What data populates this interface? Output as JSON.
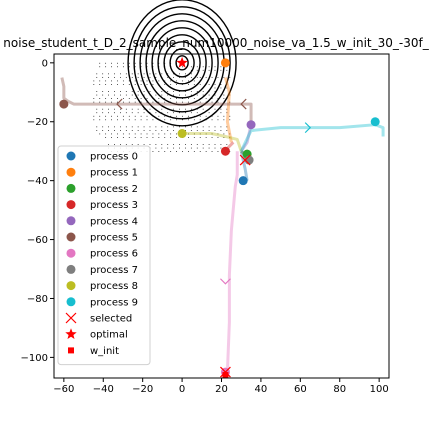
{
  "chart_data": {
    "type": "scatter",
    "title": "noise_student_t_D_2_sample_num10000_noise_va_1.5_w_init_30_-30f_",
    "xlabel": "",
    "ylabel": "",
    "xlim": [
      -65,
      105
    ],
    "ylim": [
      -107,
      3
    ],
    "x_ticks": [
      -60,
      -40,
      -20,
      0,
      20,
      40,
      60,
      80,
      100
    ],
    "y_ticks": [
      0,
      -20,
      -40,
      -60,
      -80,
      -100
    ],
    "grid": false,
    "legend_placement": "lower-left",
    "optimal": {
      "x": 0,
      "y": 0
    },
    "w_init": {
      "x": 22,
      "y": -106
    },
    "contour_center": {
      "x": 0,
      "y": 0
    },
    "series": [
      {
        "name": "process 0",
        "color": "#1f77b4",
        "path": [
          [
            30,
            -30
          ],
          [
            31,
            -33
          ],
          [
            32,
            -36
          ],
          [
            33,
            -40
          ]
        ],
        "end": [
          31,
          -40
        ]
      },
      {
        "name": "process 1",
        "color": "#ff7f0e",
        "path": [
          [
            22,
            -5
          ],
          [
            24,
            -10
          ],
          [
            23,
            -20
          ],
          [
            25,
            -27
          ]
        ],
        "end": [
          22,
          0
        ]
      },
      {
        "name": "process 2",
        "color": "#2ca02c",
        "path": [
          [
            30,
            -30
          ],
          [
            32,
            -31
          ],
          [
            33,
            -30
          ],
          [
            32,
            -33
          ]
        ],
        "end": [
          33,
          -31
        ]
      },
      {
        "name": "process 3",
        "color": "#d62728",
        "path": [
          [
            26,
            -27
          ],
          [
            23,
            -29
          ],
          [
            22,
            -30
          ]
        ],
        "end": [
          22,
          -30
        ]
      },
      {
        "name": "process 4",
        "color": "#9467bd",
        "path": [
          [
            30,
            -30
          ],
          [
            33,
            -27
          ],
          [
            34,
            -24
          ],
          [
            35,
            -21
          ]
        ],
        "end": [
          35,
          -21
        ]
      },
      {
        "name": "process 5",
        "color": "#8c564b",
        "path": [
          [
            35,
            -20
          ],
          [
            35,
            -14
          ],
          [
            0,
            -14
          ],
          [
            -55,
            -14
          ],
          [
            -58,
            -13
          ],
          [
            -60,
            -12
          ],
          [
            -60,
            -8
          ],
          [
            -61,
            -5
          ]
        ],
        "end": [
          -60,
          -14
        ]
      },
      {
        "name": "process 6",
        "color": "#e377c2",
        "path": [
          [
            28,
            -30
          ],
          [
            28,
            -38
          ],
          [
            27,
            -42
          ],
          [
            25,
            -57
          ],
          [
            24,
            -72
          ],
          [
            24,
            -88
          ],
          [
            23,
            -105
          ]
        ],
        "end": [
          22,
          -105
        ]
      },
      {
        "name": "process 7",
        "color": "#7f7f7f",
        "path": [
          [
            30,
            -30
          ],
          [
            33,
            -32
          ],
          [
            35,
            -33
          ]
        ],
        "end": [
          34,
          -33
        ]
      },
      {
        "name": "process 8",
        "color": "#bcbd22",
        "path": [
          [
            30,
            -30
          ],
          [
            28,
            -26
          ],
          [
            22,
            -25
          ],
          [
            15,
            -24
          ],
          [
            5,
            -24
          ],
          [
            0,
            -24
          ]
        ],
        "end": [
          0,
          -24
        ]
      },
      {
        "name": "process 9",
        "color": "#17becf",
        "path": [
          [
            30,
            -30
          ],
          [
            35,
            -23
          ],
          [
            50,
            -22
          ],
          [
            65,
            -22
          ],
          [
            80,
            -22
          ],
          [
            98,
            -21
          ],
          [
            102,
            -22
          ],
          [
            102,
            -25
          ]
        ],
        "end": [
          98,
          -20
        ]
      }
    ],
    "selected": [
      [
        22,
        -105
      ],
      [
        32,
        -33
      ]
    ],
    "legend": [
      {
        "label": "process 0",
        "color": "#1f77b4",
        "marker": "circle"
      },
      {
        "label": "process 1",
        "color": "#ff7f0e",
        "marker": "circle"
      },
      {
        "label": "process 2",
        "color": "#2ca02c",
        "marker": "circle"
      },
      {
        "label": "process 3",
        "color": "#d62728",
        "marker": "circle"
      },
      {
        "label": "process 4",
        "color": "#9467bd",
        "marker": "circle"
      },
      {
        "label": "process 5",
        "color": "#8c564b",
        "marker": "circle"
      },
      {
        "label": "process 6",
        "color": "#e377c2",
        "marker": "circle"
      },
      {
        "label": "process 7",
        "color": "#7f7f7f",
        "marker": "circle"
      },
      {
        "label": "process 8",
        "color": "#bcbd22",
        "marker": "circle"
      },
      {
        "label": "process 9",
        "color": "#17becf",
        "marker": "circle"
      },
      {
        "label": "selected",
        "color": "#ff0000",
        "marker": "x"
      },
      {
        "label": "optimal",
        "color": "#ff0000",
        "marker": "star"
      },
      {
        "label": "w_init",
        "color": "#ff0000",
        "marker": "square"
      }
    ]
  }
}
